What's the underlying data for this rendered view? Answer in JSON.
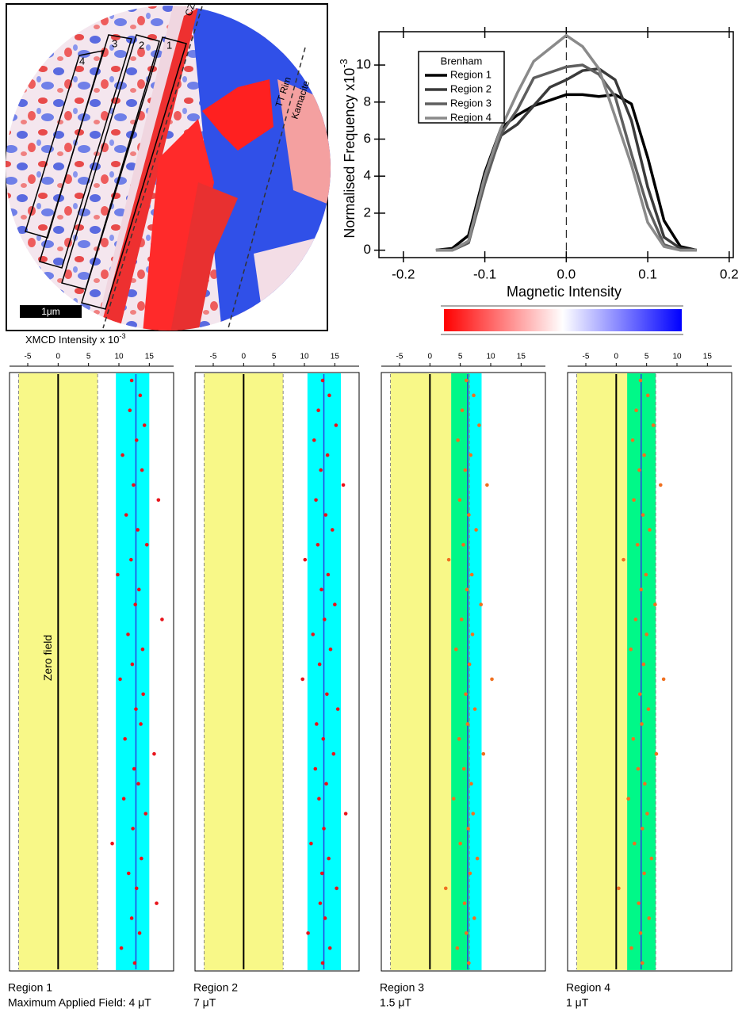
{
  "image": {
    "region_labels": [
      "1",
      "2",
      "3",
      "4"
    ],
    "cz_label": "CZ",
    "rim_label": "TT Rim",
    "kamacite_label": "Kamacite",
    "scale_label": "1μm"
  },
  "chart_data": [
    {
      "type": "line",
      "xlabel": "Magnetic Intensity",
      "ylabel": {
        "text": "Normalised Frequency x10",
        "superscript": "-3"
      },
      "legend_title": "Brenham",
      "x": [
        -0.16,
        -0.14,
        -0.12,
        -0.1,
        -0.08,
        -0.06,
        -0.04,
        -0.02,
        0,
        0.02,
        0.04,
        0.06,
        0.08,
        0.1,
        0.12,
        0.14,
        0.16
      ],
      "series": [
        {
          "name": "Region 1",
          "color": "#000000",
          "values": [
            0,
            0.1,
            0.8,
            4.2,
            6.6,
            7.3,
            7.8,
            8.1,
            8.4,
            8.4,
            8.3,
            8.4,
            7.9,
            5.0,
            1.6,
            0.2,
            0
          ]
        },
        {
          "name": "Region 2",
          "color": "#3a3a3a",
          "values": [
            0,
            0,
            0.4,
            3.8,
            6.2,
            6.8,
            7.8,
            8.8,
            9.2,
            9.7,
            9.8,
            9.2,
            7.0,
            3.4,
            0.7,
            0.1,
            0
          ]
        },
        {
          "name": "Region 3",
          "color": "#5e5e5e",
          "values": [
            0,
            0,
            0.4,
            3.6,
            6.3,
            7.6,
            9.3,
            9.6,
            9.9,
            10.0,
            9.5,
            8.3,
            5.2,
            2.3,
            0.3,
            0,
            0
          ]
        },
        {
          "name": "Region 4",
          "color": "#8a8a8a",
          "values": [
            0,
            0,
            0.5,
            4.0,
            6.6,
            8.5,
            10.2,
            10.9,
            11.6,
            11.0,
            9.8,
            7.2,
            4.6,
            1.5,
            0.2,
            0,
            0
          ]
        }
      ],
      "xlim": [
        -0.23,
        0.205
      ],
      "ylim": [
        -0.4,
        11.8
      ],
      "xticks": [
        -0.2,
        -0.1,
        {
          "value": 0,
          "label": "0.0"
        },
        0.1,
        0.2
      ],
      "yticks": [
        0,
        2,
        4,
        6,
        8,
        10
      ]
    },
    {
      "type": "scatter",
      "title": "Region 1",
      "subtitle": "Maximum Applied Field: 4 μT",
      "xlabel": {
        "text": "XMCD Intensity x 10",
        "superscript": "-3"
      },
      "annotation": "Zero field",
      "xlim": [
        -8,
        19
      ],
      "xticks": [
        -5,
        0,
        5,
        10,
        15
      ],
      "bands": [
        {
          "range": [
            -6.5,
            6.5
          ],
          "color": "#f8f888"
        },
        {
          "range": [
            9.5,
            15
          ],
          "color": "#00ffff"
        }
      ],
      "mean": 12.8,
      "color": "#e8141b",
      "values": [
        12.1,
        13.5,
        11.8,
        14.2,
        12.9,
        10.6,
        13.8,
        12.4,
        16.5,
        11.2,
        13.1,
        14.6,
        12.0,
        9.8,
        13.3,
        12.7,
        17.1,
        11.5,
        13.9,
        12.2,
        10.2,
        14.0,
        12.8,
        13.6,
        11.0,
        15.8,
        12.5,
        13.2,
        10.8,
        14.4,
        12.3,
        8.9,
        13.7,
        11.6,
        12.9,
        16.2,
        12.1,
        13.4,
        10.4,
        12.6
      ]
    },
    {
      "type": "scatter",
      "title": "Region 2",
      "subtitle": "7 μT",
      "xlim": [
        -8,
        19
      ],
      "xticks": [
        -5,
        0,
        5,
        10,
        15
      ],
      "bands": [
        {
          "range": [
            -6.5,
            6.5
          ],
          "color": "#f8f888"
        },
        {
          "range": [
            10.5,
            16
          ],
          "color": "#00ffff"
        }
      ],
      "mean": 13.2,
      "color": "#e8141b",
      "values": [
        13.0,
        14.1,
        12.3,
        15.2,
        11.6,
        13.8,
        12.7,
        16.4,
        11.9,
        13.5,
        14.6,
        12.2,
        10.1,
        13.9,
        12.8,
        15.0,
        13.3,
        11.4,
        14.3,
        12.5,
        9.7,
        13.7,
        15.5,
        12.0,
        13.1,
        14.8,
        11.8,
        13.6,
        12.4,
        16.8,
        13.2,
        11.1,
        14.0,
        12.9,
        15.3,
        12.6,
        13.4,
        10.6,
        14.2,
        13.0
      ]
    },
    {
      "type": "scatter",
      "title": "Region 3",
      "subtitle": "1.5 μT",
      "xlim": [
        -8,
        19
      ],
      "xticks": [
        -5,
        0,
        5,
        10,
        15
      ],
      "bands": [
        {
          "range": [
            -6.5,
            6.5
          ],
          "color": "#f8f888"
        },
        {
          "range": [
            3.5,
            8.5
          ],
          "color": "#00ffff"
        }
      ],
      "mean": 6.2,
      "color": "#f07020",
      "values": [
        6.0,
        7.2,
        5.3,
        8.1,
        4.6,
        6.7,
        5.8,
        9.4,
        4.9,
        6.4,
        7.6,
        5.5,
        3.1,
        6.9,
        6.1,
        8.4,
        5.2,
        7.0,
        4.3,
        6.5,
        10.2,
        5.9,
        7.4,
        6.2,
        4.8,
        8.8,
        5.6,
        6.8,
        3.9,
        7.1,
        6.3,
        5.0,
        7.8,
        6.6,
        2.6,
        5.7,
        7.3,
        6.0,
        4.5,
        6.4
      ]
    },
    {
      "type": "scatter",
      "title": "Region 4",
      "subtitle": "1 μT",
      "xlim": [
        -8,
        19
      ],
      "xticks": [
        -5,
        0,
        5,
        10,
        15
      ],
      "bands": [
        {
          "range": [
            -6.5,
            6.5
          ],
          "color": "#f8f888"
        },
        {
          "range": [
            1.8,
            6.5
          ],
          "color": "#00ffff"
        }
      ],
      "mean": 4.1,
      "color": "#f07020",
      "values": [
        4.0,
        5.2,
        3.3,
        6.1,
        2.7,
        4.6,
        3.8,
        7.3,
        2.9,
        4.4,
        5.5,
        3.5,
        1.2,
        4.9,
        4.1,
        6.4,
        3.2,
        5.0,
        2.4,
        4.5,
        7.8,
        3.9,
        5.3,
        4.2,
        2.8,
        6.6,
        3.6,
        4.7,
        2.0,
        5.1,
        4.3,
        3.0,
        5.8,
        4.6,
        0.4,
        3.7,
        5.4,
        4.0,
        2.5,
        4.3
      ]
    }
  ]
}
